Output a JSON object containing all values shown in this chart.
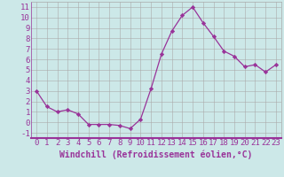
{
  "x": [
    0,
    1,
    2,
    3,
    4,
    5,
    6,
    7,
    8,
    9,
    10,
    11,
    12,
    13,
    14,
    15,
    16,
    17,
    18,
    19,
    20,
    21,
    22,
    23
  ],
  "y": [
    3.0,
    1.5,
    1.0,
    1.2,
    0.8,
    -0.2,
    -0.2,
    -0.2,
    -0.3,
    -0.6,
    0.3,
    3.2,
    6.5,
    8.7,
    10.2,
    11.0,
    9.5,
    8.2,
    6.8,
    6.3,
    5.3,
    5.5,
    4.8,
    5.5
  ],
  "line_color": "#993399",
  "marker": "D",
  "marker_size": 2.2,
  "bg_color": "#cce8e8",
  "grid_color": "#aaaaaa",
  "xlabel": "Windchill (Refroidissement éolien,°C)",
  "xlabel_fontsize": 7,
  "ylabel_ticks": [
    -1,
    0,
    1,
    2,
    3,
    4,
    5,
    6,
    7,
    8,
    9,
    10,
    11
  ],
  "xlim": [
    -0.5,
    23.5
  ],
  "ylim": [
    -1.5,
    11.5
  ],
  "tick_fontsize": 6.5,
  "label_color": "#993399",
  "spine_color": "#993399"
}
